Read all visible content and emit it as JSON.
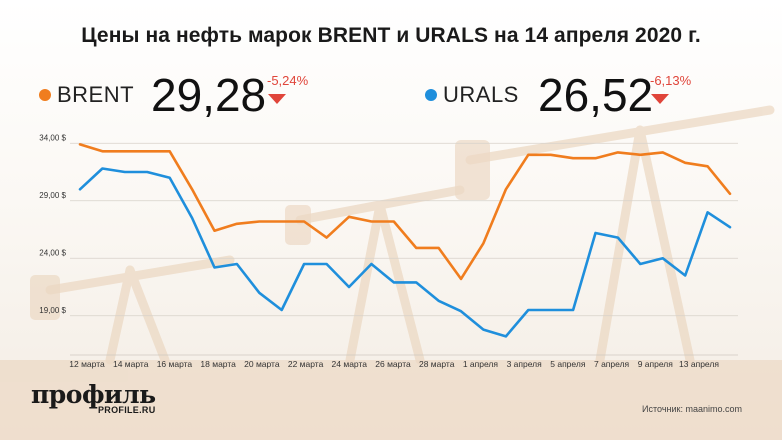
{
  "title": "Цены на нефть марок BRENT и URALS на 14 апреля 2020 г.",
  "tickers": [
    {
      "name": "BRENT",
      "value": "29,28",
      "change": "-5,24%",
      "color": "#f07d1e"
    },
    {
      "name": "URALS",
      "value": "26,52",
      "change": "-6,13%",
      "color": "#1f8fdc"
    }
  ],
  "logo": {
    "name": "профиль",
    "site": "PROFILE.RU"
  },
  "source": "Источник: maanimo.com",
  "chart_data": {
    "type": "line",
    "x_labels": [
      "12 марта",
      "14 марта",
      "16 марта",
      "18 марта",
      "20 марта",
      "22 марта",
      "24 марта",
      "26 марта",
      "28 марта",
      "1 апреля",
      "3 апреля",
      "5 апреля",
      "7 апреля",
      "9 апреля",
      "13 апреля"
    ],
    "y_ticks": [
      "34,00 $",
      "29,00 $",
      "24,00 $",
      "19,00 $"
    ],
    "ylim": [
      15.5,
      35.5
    ],
    "legend": "top",
    "series": [
      {
        "name": "BRENT",
        "color": "#f07d1e",
        "values": [
          33.9,
          33.3,
          33.3,
          33.3,
          33.3,
          30.0,
          26.4,
          27.0,
          27.2,
          27.2,
          27.2,
          25.8,
          27.6,
          27.2,
          27.2,
          24.9,
          24.9,
          22.2,
          25.3,
          30.0,
          33.0,
          33.0,
          32.7,
          32.7,
          33.2,
          33.0,
          33.2,
          32.3,
          32.0,
          29.6
        ]
      },
      {
        "name": "URALS",
        "color": "#1f8fdc",
        "values": [
          30.0,
          31.8,
          31.5,
          31.5,
          31.0,
          27.5,
          23.2,
          23.5,
          21.0,
          19.5,
          23.5,
          23.5,
          21.5,
          23.5,
          21.9,
          21.9,
          20.3,
          19.4,
          17.8,
          17.2,
          19.5,
          19.5,
          19.5,
          26.2,
          25.8,
          23.5,
          24.0,
          22.5,
          28.0,
          26.7
        ]
      }
    ]
  }
}
